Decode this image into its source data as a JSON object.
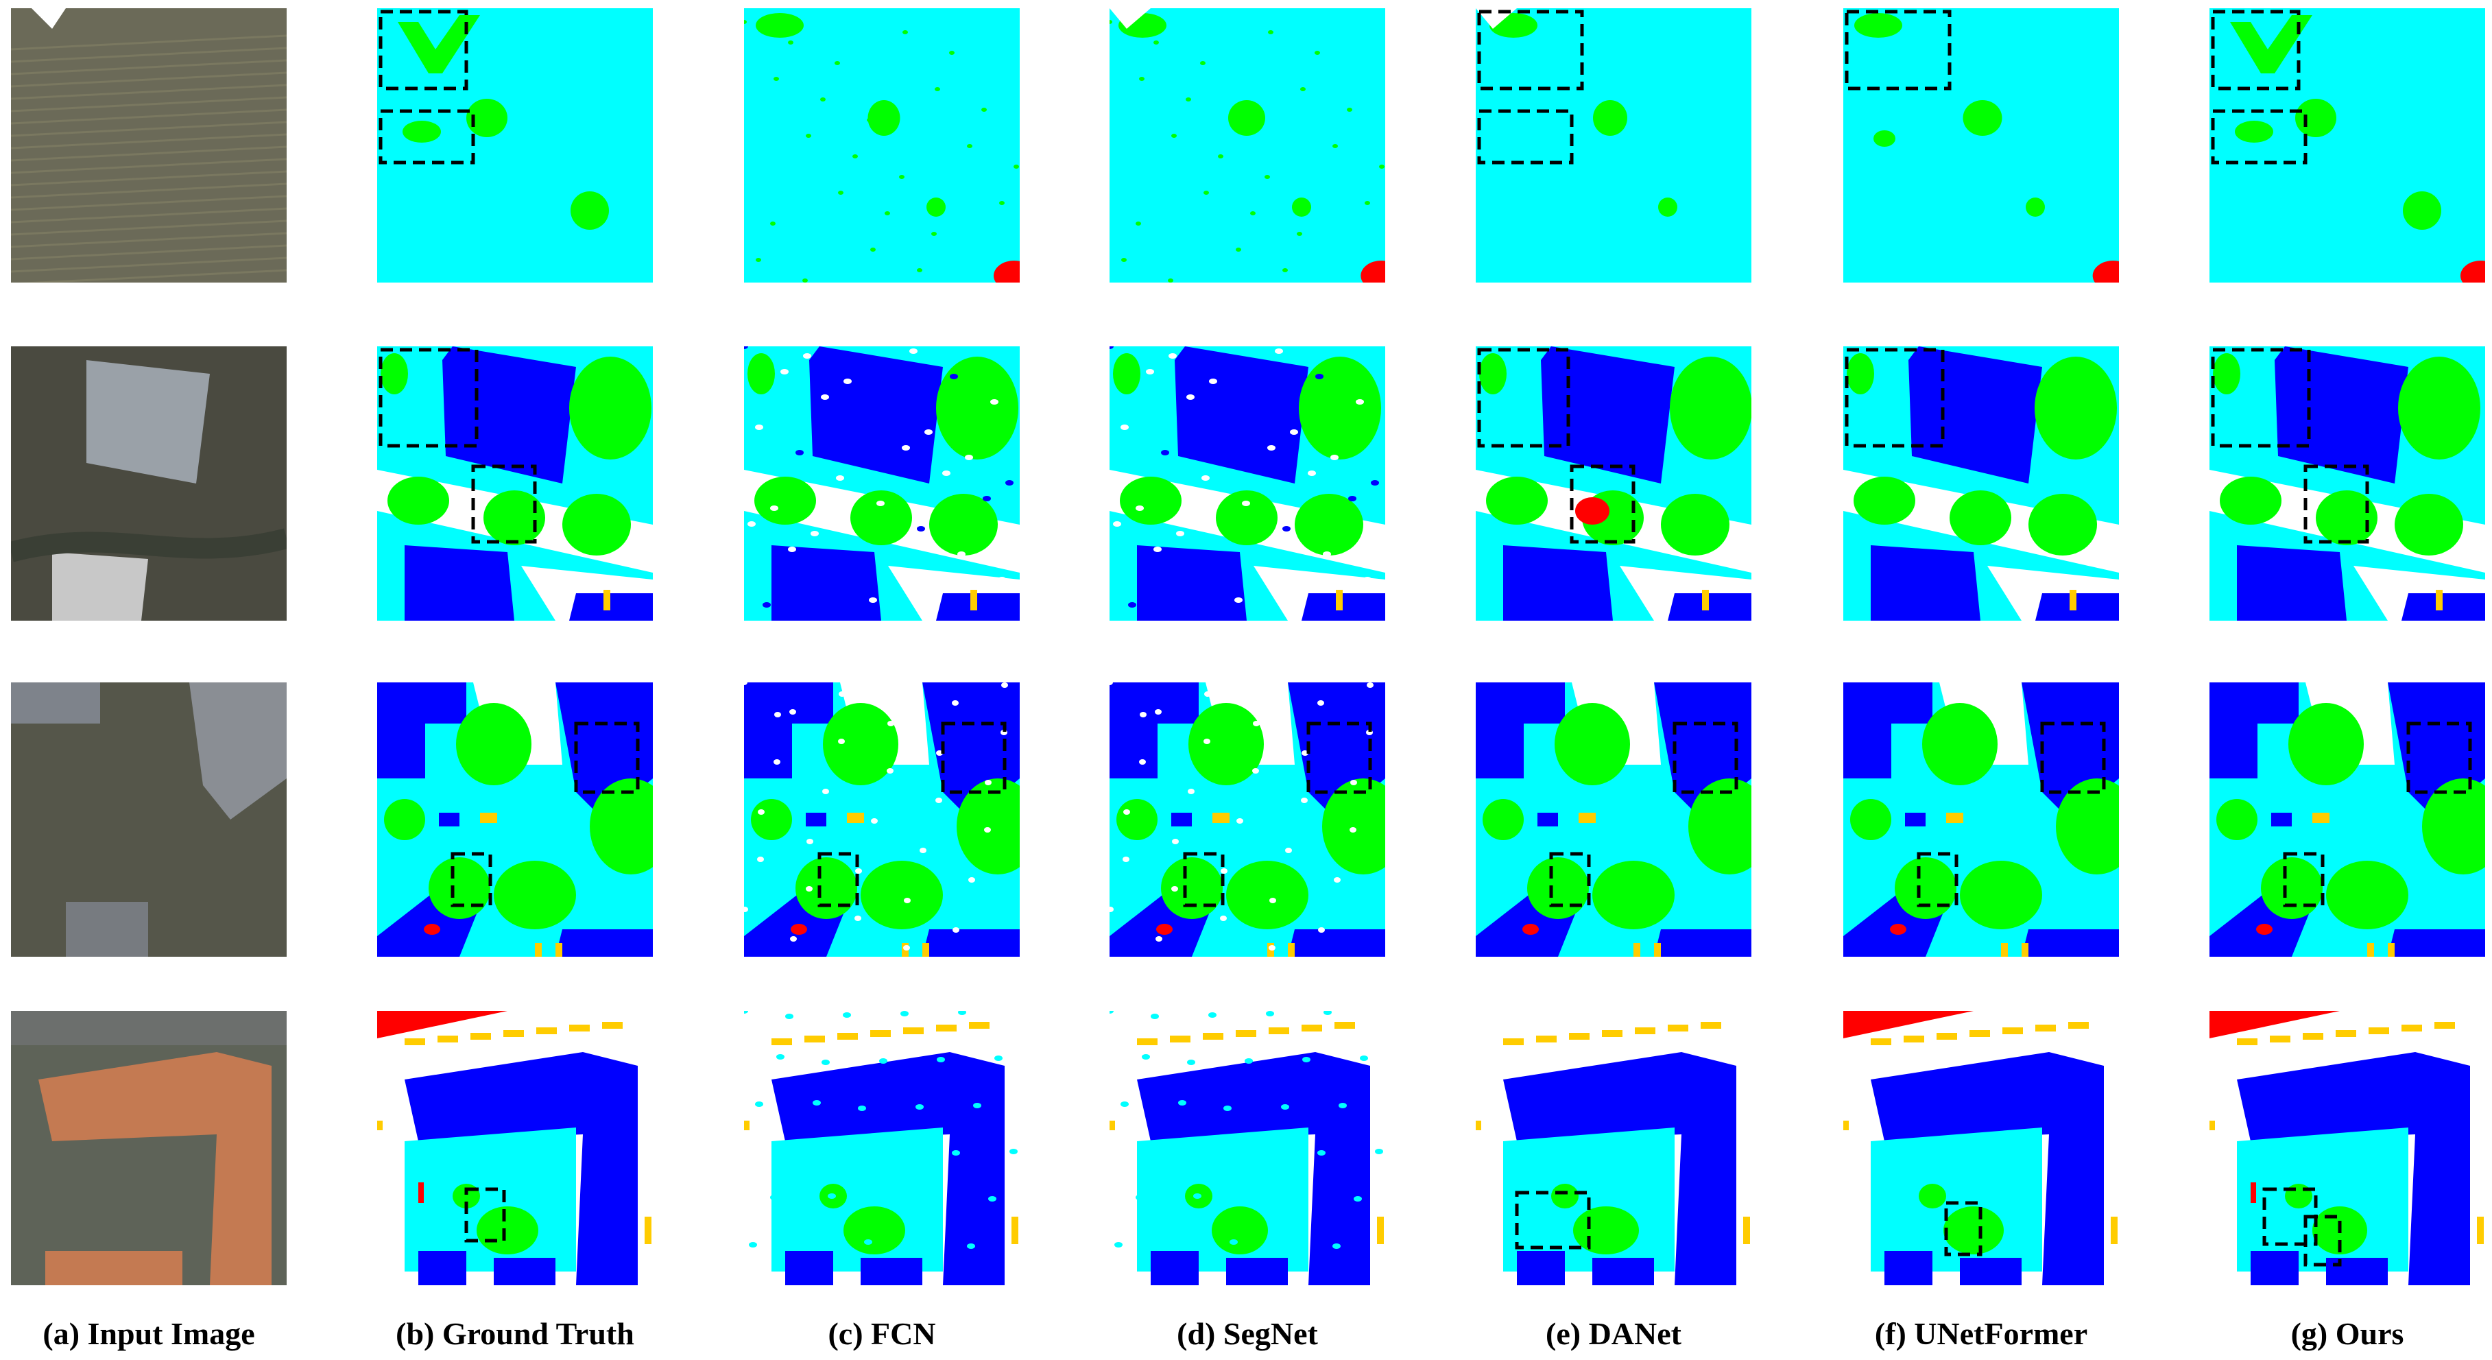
{
  "figure": {
    "columns": [
      {
        "key": "input",
        "caption": "(a) Input Image"
      },
      {
        "key": "gt",
        "caption": "(b) Ground Truth"
      },
      {
        "key": "fcn",
        "caption": "(c) FCN"
      },
      {
        "key": "segnet",
        "caption": "(d) SegNet"
      },
      {
        "key": "danet",
        "caption": "(e) DANet"
      },
      {
        "key": "unetformer",
        "caption": "(f) UNetFormer"
      },
      {
        "key": "ours",
        "caption": "(g) Ours"
      }
    ],
    "row_count": 4
  },
  "palette": {
    "impervious_surface": "#ffffff",
    "building": "#0000ff",
    "low_vegetation": "#00ffff",
    "tree": "#00ff00",
    "car": "#ffcc00",
    "clutter": "#ff0000",
    "highlight_box": "#000000"
  }
}
